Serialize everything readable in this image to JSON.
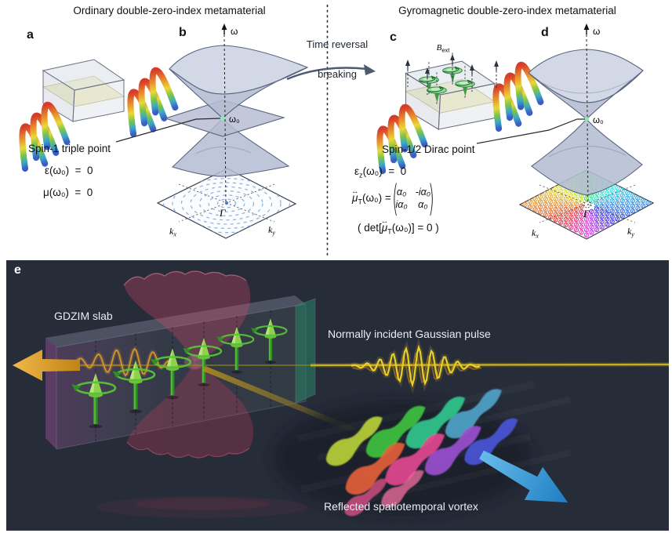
{
  "left_section": {
    "title": "Ordinary double-zero-index metamaterial",
    "panel_a_label": "a",
    "panel_b_label": "b",
    "omega_axis": "ω",
    "omega0": "ω₀",
    "gamma": "Γ",
    "kx": {
      "base": "k",
      "sub": "x"
    },
    "ky": {
      "base": "k",
      "sub": "y"
    },
    "point_label": "Spin-1 triple point",
    "eq_epsilon": "ε(ω₀)  =  0",
    "eq_mu": "μ(ω₀)  =  0"
  },
  "transition": {
    "line1": "Time reversal",
    "line2": "breaking"
  },
  "right_section": {
    "title": "Gyromagnetic double-zero-index metamaterial",
    "panel_c_label": "c",
    "panel_d_label": "d",
    "b_ext": {
      "base": "B",
      "sub": "ext"
    },
    "omega_axis": "ω",
    "omega0": "ω₀",
    "gamma": "Γ",
    "kx": {
      "base": "k",
      "sub": "x"
    },
    "ky": {
      "base": "k",
      "sub": "y"
    },
    "point_label": "Spin-1/2 Dirac point",
    "eq_epsilon_z": {
      "base": "ε",
      "sub": "z",
      "rest": "(ω₀)  =  0"
    },
    "eq_mu_tensor": {
      "mu": "μ",
      "arrow": "↔",
      "sub": "T",
      "lhs_rest": "(ω₀) = ",
      "m11": "α₀",
      "m12": "-iα₀",
      "m21": "iα₀",
      "m22": "α₀"
    },
    "eq_det": {
      "pre": "( det[",
      "mu": "μ",
      "arrow": "↔",
      "sub": "T",
      "post": "(ω₀)] = 0 )"
    }
  },
  "panel_e": {
    "label": "e",
    "slab_label": "GDZIM slab",
    "incident_label": "Normally incident Gaussian pulse",
    "reflected_label": "Reflected spatiotemporal vortex",
    "background": "#272c39",
    "colors": {
      "spin_green": "#54c437",
      "cone_red": "#e24a6e",
      "beam_yellow": "#d8bd25",
      "wave_orange": "#d6952a",
      "transmitted_arrow": "#dfa62c",
      "reflected_arrow": "#3999d6",
      "vortex_top_row": [
        "#b7cf36",
        "#3dc13f",
        "#2fc58c",
        "#4fa3c8"
      ],
      "vortex_bottom_row": [
        "#e2603a",
        "#e1478f",
        "#9a4ecf",
        "#4b55d6"
      ],
      "vortex_extra": [
        "#d94f86",
        "#e86a9a"
      ]
    }
  },
  "band_diagram": {
    "surface_fill": "#b4bcd2",
    "surface_edge": "#59647f",
    "point_dot": "#8ce8b4",
    "ring_blue": "#8ab0e2"
  }
}
